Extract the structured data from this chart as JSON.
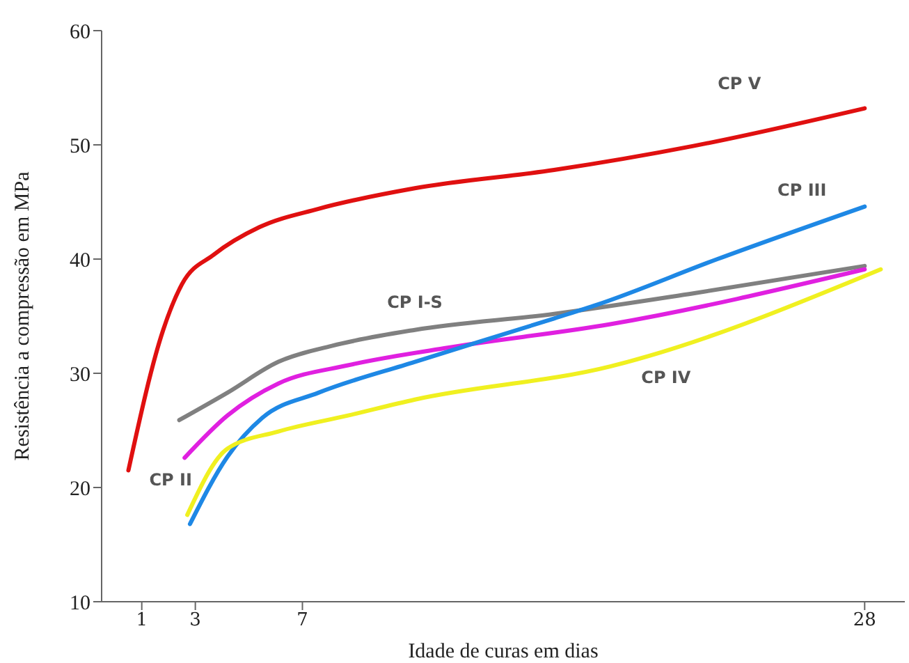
{
  "chart_data": {
    "type": "line",
    "xlabel": "Idade de curas em dias",
    "ylabel": "Resistência a compressão em MPa",
    "xlim": [
      -0.5,
      29.5
    ],
    "xticks": [
      1,
      3,
      7,
      28
    ],
    "ylim": [
      10,
      60
    ],
    "yticks": [
      10,
      20,
      30,
      40,
      50,
      60
    ],
    "grid": false,
    "legend": false,
    "marker": "none",
    "line_style": "solid",
    "series": [
      {
        "name": "CP V",
        "color": "#e01010",
        "x": [
          0.5,
          1.8,
          2.5,
          3.7,
          5.4,
          7.6,
          11.2,
          16.4,
          21.6,
          28
        ],
        "values": [
          21.5,
          33.8,
          37.8,
          40.4,
          42.8,
          44.4,
          46.2,
          47.8,
          49.9,
          53.2
        ]
      },
      {
        "name": "CP I-S",
        "color": "#808080",
        "x": [
          2.4,
          4.2,
          6.1,
          8.1,
          11.2,
          16.4,
          21.6,
          28
        ],
        "values": [
          25.9,
          28.3,
          31,
          32.4,
          33.8,
          35.2,
          37,
          39.4
        ]
      },
      {
        "name": "CP II",
        "color": "#e020e0",
        "x": [
          2.6,
          4.2,
          6.1,
          8.7,
          12.3,
          18.5,
          28
        ],
        "values": [
          22.6,
          26.3,
          29.1,
          30.7,
          32.2,
          34.3,
          39.1
        ]
      },
      {
        "name": "CP III",
        "color": "#1e88e5",
        "x": [
          2.8,
          4.2,
          5.5,
          7.6,
          11.2,
          16.4,
          18,
          22.5,
          28
        ],
        "values": [
          16.8,
          22.7,
          26.1,
          28.3,
          31,
          34.8,
          36,
          40,
          44.6
        ]
      },
      {
        "name": "CP IV",
        "color": "#f0f020",
        "x": [
          2.7,
          4.2,
          6.1,
          8.7,
          11.2,
          18.5,
          28.6
        ],
        "values": [
          17.6,
          23.4,
          24.9,
          26.3,
          27.7,
          30.6,
          39.1
        ]
      }
    ]
  }
}
